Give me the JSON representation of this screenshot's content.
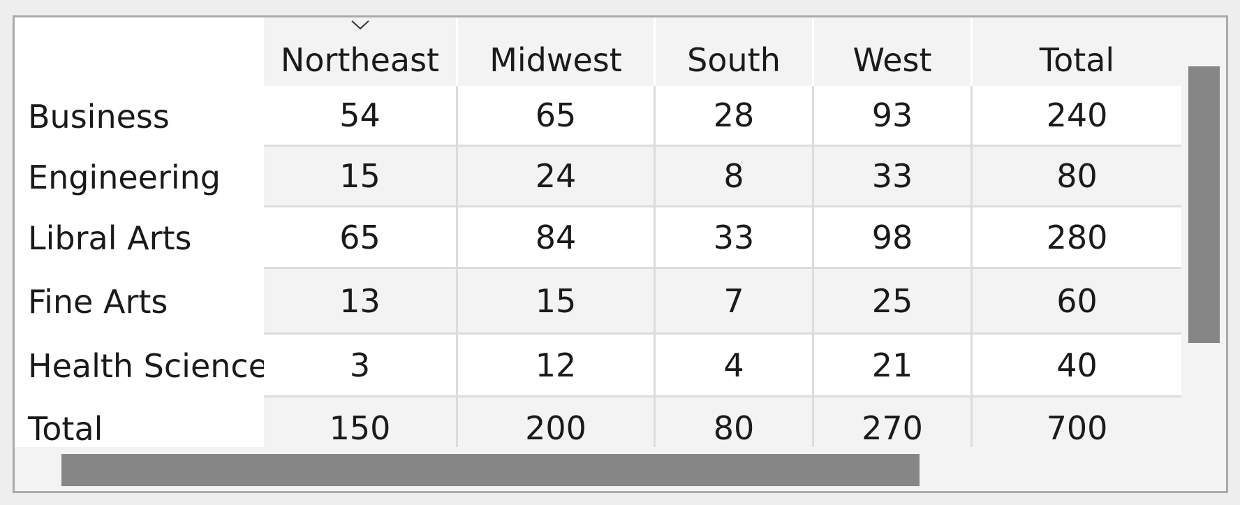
{
  "table": {
    "columns": [
      "Northeast",
      "Midwest",
      "South",
      "West",
      "Total"
    ],
    "rows": [
      {
        "label": "Business",
        "values": [
          "54",
          "65",
          "28",
          "93",
          "240"
        ]
      },
      {
        "label": "Engineering",
        "values": [
          "15",
          "24",
          "8",
          "33",
          "80"
        ]
      },
      {
        "label": "Libral Arts",
        "values": [
          "65",
          "84",
          "33",
          "98",
          "280"
        ]
      },
      {
        "label": "Fine Arts",
        "values": [
          "13",
          "15",
          "7",
          "25",
          "60"
        ]
      },
      {
        "label": "Health Science",
        "values": [
          "3",
          "12",
          "4",
          "21",
          "40"
        ]
      },
      {
        "label": "Total",
        "values": [
          "150",
          "200",
          "80",
          "270",
          "700"
        ]
      }
    ],
    "sort_indicator_column": "Northeast",
    "sort_icon": "chevron-down-icon"
  },
  "colors": {
    "header_bg": "#f3f3f3",
    "row_alt_bg": "#f3f3f3",
    "gridline": "#dcdcdc",
    "scrollbar_thumb": "#868686",
    "frame_border": "#aaaaaa"
  }
}
